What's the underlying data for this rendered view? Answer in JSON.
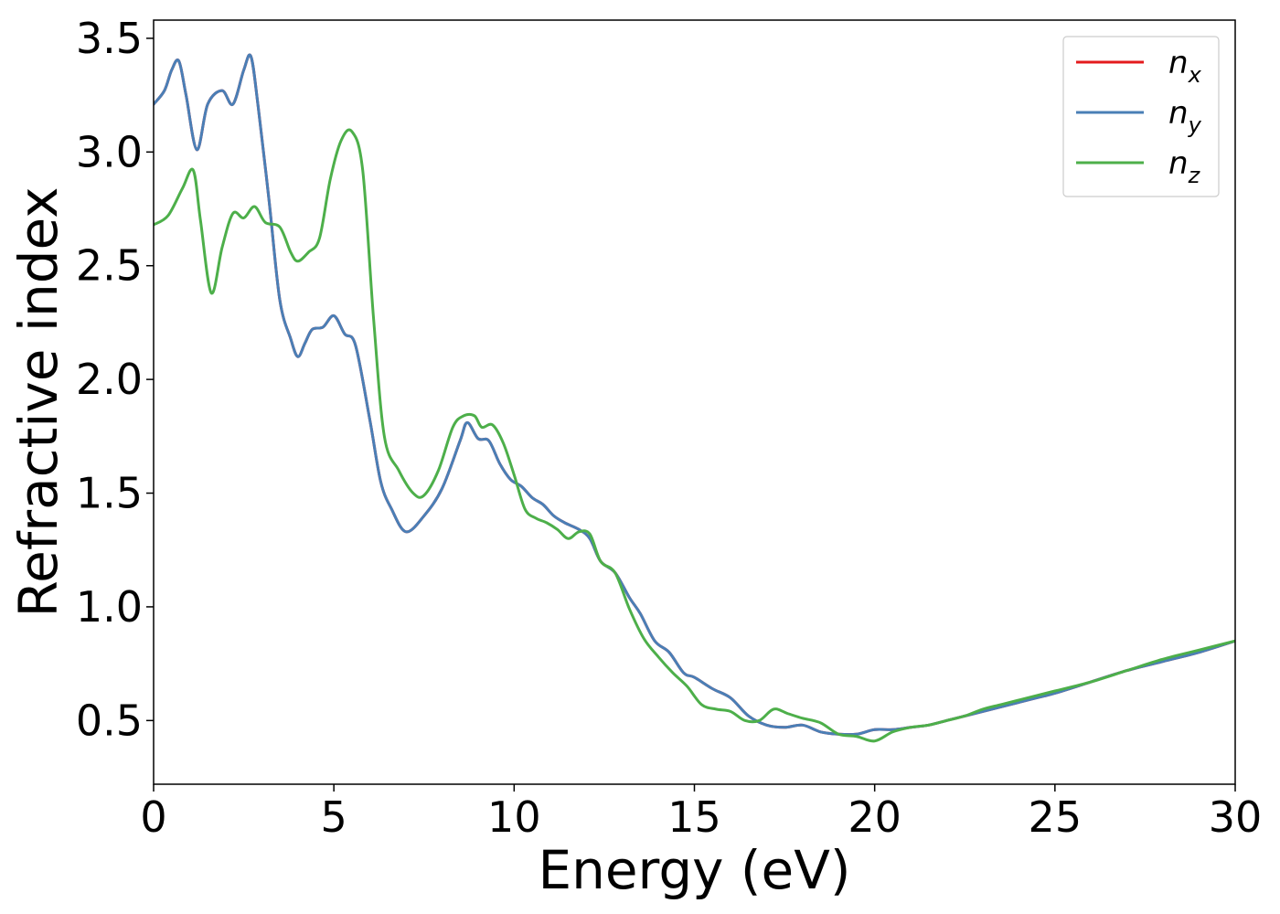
{
  "chart_data": {
    "type": "line",
    "title": "",
    "xlabel": "Energy (eV)",
    "ylabel": "Refractive index",
    "xlim": [
      0,
      30
    ],
    "ylim": [
      0.22,
      3.58
    ],
    "xticks": [
      0,
      5,
      10,
      15,
      20,
      25,
      30
    ],
    "xtick_labels": [
      "0",
      "5",
      "10",
      "15",
      "20",
      "25",
      "30"
    ],
    "yticks": [
      0.5,
      1.0,
      1.5,
      2.0,
      2.5,
      3.0,
      3.5
    ],
    "ytick_labels": [
      "0.5",
      "1.0",
      "1.5",
      "2.0",
      "2.5",
      "3.0",
      "3.5"
    ],
    "grid": false,
    "legend_position": "top-right",
    "series": [
      {
        "name": "n_x",
        "label_base": "n",
        "label_sub": "x",
        "color": "#e41a1c",
        "x": [
          0,
          0.3,
          0.5,
          0.7,
          0.9,
          1.2,
          1.5,
          1.9,
          2.2,
          2.5,
          2.7,
          2.9,
          3.2,
          3.5,
          3.8,
          4.0,
          4.2,
          4.4,
          4.7,
          5.0,
          5.3,
          5.6,
          6.0,
          6.3,
          6.6,
          7.0,
          7.5,
          8.0,
          8.5,
          8.7,
          9.0,
          9.3,
          9.6,
          9.9,
          10.2,
          10.5,
          10.8,
          11.1,
          11.4,
          11.8,
          12.1,
          12.4,
          12.8,
          13.2,
          13.5,
          13.9,
          14.3,
          14.7,
          15.0,
          15.5,
          16.0,
          16.5,
          17.0,
          17.5,
          18.0,
          18.5,
          19.0,
          19.5,
          20.0,
          20.5,
          21.0,
          21.5,
          22.0,
          22.5,
          23.0,
          23.5,
          24.0,
          24.5,
          25.0,
          26.0,
          27.0,
          28.0,
          29.0,
          30.0
        ],
        "y": [
          3.21,
          3.27,
          3.36,
          3.4,
          3.25,
          3.01,
          3.21,
          3.27,
          3.21,
          3.36,
          3.42,
          3.2,
          2.79,
          2.35,
          2.18,
          2.1,
          2.16,
          2.22,
          2.23,
          2.28,
          2.2,
          2.15,
          1.82,
          1.55,
          1.43,
          1.33,
          1.4,
          1.52,
          1.73,
          1.81,
          1.74,
          1.73,
          1.63,
          1.56,
          1.53,
          1.48,
          1.45,
          1.4,
          1.37,
          1.34,
          1.3,
          1.2,
          1.15,
          1.04,
          0.97,
          0.85,
          0.8,
          0.71,
          0.69,
          0.64,
          0.6,
          0.52,
          0.48,
          0.47,
          0.48,
          0.45,
          0.44,
          0.44,
          0.46,
          0.46,
          0.47,
          0.48,
          0.5,
          0.52,
          0.54,
          0.56,
          0.58,
          0.6,
          0.62,
          0.67,
          0.72,
          0.76,
          0.8,
          0.85
        ]
      },
      {
        "name": "n_y",
        "label_base": "n",
        "label_sub": "y",
        "color": "#4a7fb6",
        "x": [
          0,
          0.3,
          0.5,
          0.7,
          0.9,
          1.2,
          1.5,
          1.9,
          2.2,
          2.5,
          2.7,
          2.9,
          3.2,
          3.5,
          3.8,
          4.0,
          4.2,
          4.4,
          4.7,
          5.0,
          5.3,
          5.6,
          6.0,
          6.3,
          6.6,
          7.0,
          7.5,
          8.0,
          8.5,
          8.7,
          9.0,
          9.3,
          9.6,
          9.9,
          10.2,
          10.5,
          10.8,
          11.1,
          11.4,
          11.8,
          12.1,
          12.4,
          12.8,
          13.2,
          13.5,
          13.9,
          14.3,
          14.7,
          15.0,
          15.5,
          16.0,
          16.5,
          17.0,
          17.5,
          18.0,
          18.5,
          19.0,
          19.5,
          20.0,
          20.5,
          21.0,
          21.5,
          22.0,
          22.5,
          23.0,
          23.5,
          24.0,
          24.5,
          25.0,
          26.0,
          27.0,
          28.0,
          29.0,
          30.0
        ],
        "y": [
          3.21,
          3.27,
          3.36,
          3.4,
          3.25,
          3.01,
          3.21,
          3.27,
          3.21,
          3.36,
          3.42,
          3.2,
          2.79,
          2.35,
          2.18,
          2.1,
          2.16,
          2.22,
          2.23,
          2.28,
          2.2,
          2.15,
          1.82,
          1.55,
          1.43,
          1.33,
          1.4,
          1.52,
          1.73,
          1.81,
          1.74,
          1.73,
          1.63,
          1.56,
          1.53,
          1.48,
          1.45,
          1.4,
          1.37,
          1.34,
          1.3,
          1.2,
          1.15,
          1.04,
          0.97,
          0.85,
          0.8,
          0.71,
          0.69,
          0.64,
          0.6,
          0.52,
          0.48,
          0.47,
          0.48,
          0.45,
          0.44,
          0.44,
          0.46,
          0.46,
          0.47,
          0.48,
          0.5,
          0.52,
          0.54,
          0.56,
          0.58,
          0.6,
          0.62,
          0.67,
          0.72,
          0.76,
          0.8,
          0.85
        ]
      },
      {
        "name": "n_z",
        "label_base": "n",
        "label_sub": "z",
        "color": "#4daf4a",
        "x": [
          0,
          0.4,
          0.8,
          1.1,
          1.3,
          1.6,
          1.9,
          2.2,
          2.5,
          2.8,
          3.1,
          3.5,
          3.8,
          4.0,
          4.3,
          4.6,
          4.9,
          5.2,
          5.5,
          5.8,
          6.1,
          6.4,
          6.8,
          7.2,
          7.5,
          7.9,
          8.3,
          8.6,
          8.9,
          9.1,
          9.4,
          9.7,
          10.0,
          10.3,
          10.6,
          10.9,
          11.2,
          11.5,
          11.8,
          12.1,
          12.4,
          12.8,
          13.2,
          13.6,
          14.0,
          14.4,
          14.8,
          15.2,
          15.6,
          16.0,
          16.4,
          16.8,
          17.2,
          17.6,
          18.0,
          18.5,
          19.0,
          19.5,
          20.0,
          20.5,
          21.0,
          21.5,
          22.0,
          22.5,
          23.0,
          23.5,
          24.0,
          24.5,
          25.0,
          26.0,
          27.0,
          28.0,
          29.0,
          30.0
        ],
        "y": [
          2.68,
          2.72,
          2.84,
          2.92,
          2.7,
          2.38,
          2.58,
          2.73,
          2.71,
          2.76,
          2.69,
          2.67,
          2.56,
          2.52,
          2.56,
          2.62,
          2.88,
          3.05,
          3.09,
          2.92,
          2.27,
          1.75,
          1.6,
          1.5,
          1.49,
          1.6,
          1.79,
          1.84,
          1.84,
          1.79,
          1.8,
          1.72,
          1.58,
          1.43,
          1.39,
          1.37,
          1.34,
          1.3,
          1.33,
          1.32,
          1.2,
          1.15,
          0.99,
          0.86,
          0.78,
          0.71,
          0.65,
          0.57,
          0.55,
          0.54,
          0.5,
          0.5,
          0.55,
          0.53,
          0.51,
          0.49,
          0.44,
          0.43,
          0.41,
          0.45,
          0.47,
          0.48,
          0.5,
          0.52,
          0.55,
          0.57,
          0.59,
          0.61,
          0.63,
          0.67,
          0.72,
          0.77,
          0.81,
          0.85
        ]
      }
    ]
  }
}
